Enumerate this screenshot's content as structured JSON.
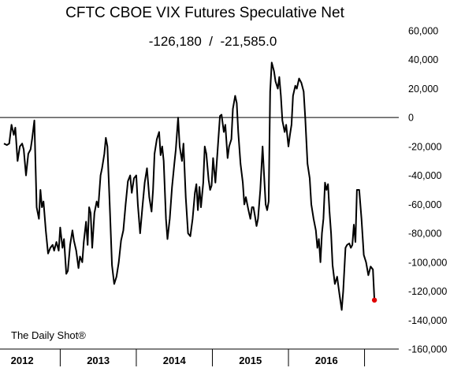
{
  "chart_data": {
    "type": "line",
    "title": "CFTC CBOE VIX Futures Speculative Net",
    "subtitle": "-126,180  /  -21,585.0",
    "source": "The Daily Shot®",
    "xlabel": "",
    "ylabel": "",
    "ylim": [
      -160000,
      60000
    ],
    "yticks": [
      60000,
      40000,
      20000,
      0,
      -20000,
      -40000,
      -60000,
      -80000,
      -100000,
      -120000,
      -140000,
      -160000
    ],
    "ytick_labels": [
      "60,000",
      "40,000",
      "20,000",
      "0",
      "-20,000",
      "-40,000",
      "-60,000",
      "-80,000",
      "-100,000",
      "-120,000",
      "-140,000",
      "-160,000"
    ],
    "xlim": [
      2011.75,
      2016.95
    ],
    "year_labels": [
      "2012",
      "2013",
      "2014",
      "2015",
      "2016"
    ],
    "year_boundaries": [
      2012.5,
      2013.5,
      2014.5,
      2015.5,
      2016.5
    ],
    "zero_line": true,
    "grid": false,
    "last_point_color": "#e00000",
    "line_color": "#000000",
    "series": [
      {
        "values": [
          [
            2011.76,
            -18000
          ],
          [
            2011.8,
            -19000
          ],
          [
            2011.83,
            -18000
          ],
          [
            2011.86,
            -5000
          ],
          [
            2011.89,
            -12000
          ],
          [
            2011.91,
            -7000
          ],
          [
            2011.94,
            -30000
          ],
          [
            2011.97,
            -20000
          ],
          [
            2012.0,
            -18000
          ],
          [
            2012.02,
            -22000
          ],
          [
            2012.05,
            -40000
          ],
          [
            2012.08,
            -25000
          ],
          [
            2012.11,
            -22000
          ],
          [
            2012.13,
            -15000
          ],
          [
            2012.16,
            -2000
          ],
          [
            2012.19,
            -62000
          ],
          [
            2012.22,
            -70000
          ],
          [
            2012.24,
            -50000
          ],
          [
            2012.26,
            -62000
          ],
          [
            2012.28,
            -58000
          ],
          [
            2012.31,
            -78000
          ],
          [
            2012.34,
            -94000
          ],
          [
            2012.37,
            -90000
          ],
          [
            2012.4,
            -88000
          ],
          [
            2012.42,
            -92000
          ],
          [
            2012.45,
            -86000
          ],
          [
            2012.48,
            -92000
          ],
          [
            2012.5,
            -76000
          ],
          [
            2012.53,
            -90000
          ],
          [
            2012.55,
            -84000
          ],
          [
            2012.58,
            -108000
          ],
          [
            2012.6,
            -106000
          ],
          [
            2012.63,
            -88000
          ],
          [
            2012.66,
            -78000
          ],
          [
            2012.68,
            -85000
          ],
          [
            2012.71,
            -92000
          ],
          [
            2012.74,
            -104000
          ],
          [
            2012.76,
            -96000
          ],
          [
            2012.79,
            -100000
          ],
          [
            2012.81,
            -86000
          ],
          [
            2012.84,
            -72000
          ],
          [
            2012.86,
            -88000
          ],
          [
            2012.88,
            -62000
          ],
          [
            2012.9,
            -66000
          ],
          [
            2012.92,
            -90000
          ],
          [
            2012.95,
            -66000
          ],
          [
            2012.98,
            -58000
          ],
          [
            2013.0,
            -62000
          ],
          [
            2013.03,
            -40000
          ],
          [
            2013.05,
            -35000
          ],
          [
            2013.08,
            -25000
          ],
          [
            2013.1,
            -14000
          ],
          [
            2013.12,
            -20000
          ],
          [
            2013.15,
            -60000
          ],
          [
            2013.18,
            -102000
          ],
          [
            2013.21,
            -115000
          ],
          [
            2013.24,
            -110000
          ],
          [
            2013.27,
            -100000
          ],
          [
            2013.3,
            -85000
          ],
          [
            2013.33,
            -78000
          ],
          [
            2013.36,
            -60000
          ],
          [
            2013.39,
            -44000
          ],
          [
            2013.42,
            -40000
          ],
          [
            2013.44,
            -52000
          ],
          [
            2013.47,
            -42000
          ],
          [
            2013.5,
            -40000
          ],
          [
            2013.52,
            -60000
          ],
          [
            2013.55,
            -80000
          ],
          [
            2013.58,
            -62000
          ],
          [
            2013.61,
            -45000
          ],
          [
            2013.64,
            -35000
          ],
          [
            2013.67,
            -55000
          ],
          [
            2013.7,
            -65000
          ],
          [
            2013.72,
            -50000
          ],
          [
            2013.74,
            -25000
          ],
          [
            2013.77,
            -15000
          ],
          [
            2013.8,
            -10000
          ],
          [
            2013.82,
            -26000
          ],
          [
            2013.84,
            -20000
          ],
          [
            2013.86,
            -30000
          ],
          [
            2013.89,
            -70000
          ],
          [
            2013.91,
            -84000
          ],
          [
            2013.94,
            -70000
          ],
          [
            2013.97,
            -48000
          ],
          [
            2014.0,
            -32000
          ],
          [
            2014.02,
            -22000
          ],
          [
            2014.05,
            0
          ],
          [
            2014.07,
            -20000
          ],
          [
            2014.1,
            -30000
          ],
          [
            2014.12,
            -18000
          ],
          [
            2014.15,
            -55000
          ],
          [
            2014.18,
            -80000
          ],
          [
            2014.21,
            -82000
          ],
          [
            2014.24,
            -70000
          ],
          [
            2014.27,
            -52000
          ],
          [
            2014.29,
            -46000
          ],
          [
            2014.31,
            -64000
          ],
          [
            2014.33,
            -48000
          ],
          [
            2014.35,
            -62000
          ],
          [
            2014.38,
            -45000
          ],
          [
            2014.4,
            -20000
          ],
          [
            2014.42,
            -25000
          ],
          [
            2014.45,
            -43000
          ],
          [
            2014.47,
            -50000
          ],
          [
            2014.49,
            -47000
          ],
          [
            2014.51,
            -28000
          ],
          [
            2014.54,
            -45000
          ],
          [
            2014.57,
            -22000
          ],
          [
            2014.6,
            1000
          ],
          [
            2014.62,
            2000
          ],
          [
            2014.65,
            -10000
          ],
          [
            2014.67,
            -5000
          ],
          [
            2014.7,
            -28000
          ],
          [
            2014.72,
            -20000
          ],
          [
            2014.75,
            -15000
          ],
          [
            2014.77,
            6000
          ],
          [
            2014.8,
            15000
          ],
          [
            2014.82,
            10000
          ],
          [
            2014.84,
            -10000
          ],
          [
            2014.87,
            -32000
          ],
          [
            2014.9,
            -45000
          ],
          [
            2014.92,
            -60000
          ],
          [
            2014.94,
            -55000
          ],
          [
            2014.97,
            -63000
          ],
          [
            2015.0,
            -70000
          ],
          [
            2015.02,
            -62000
          ],
          [
            2015.04,
            -62000
          ],
          [
            2015.06,
            -68000
          ],
          [
            2015.08,
            -75000
          ],
          [
            2015.1,
            -70000
          ],
          [
            2015.13,
            -50000
          ],
          [
            2015.16,
            -20000
          ],
          [
            2015.18,
            -40000
          ],
          [
            2015.2,
            -60000
          ],
          [
            2015.22,
            -64000
          ],
          [
            2015.24,
            -58000
          ],
          [
            2015.26,
            18000
          ],
          [
            2015.28,
            38000
          ],
          [
            2015.31,
            32000
          ],
          [
            2015.33,
            25000
          ],
          [
            2015.36,
            20000
          ],
          [
            2015.38,
            28000
          ],
          [
            2015.4,
            15000
          ],
          [
            2015.42,
            -2000
          ],
          [
            2015.45,
            -10000
          ],
          [
            2015.47,
            -5000
          ],
          [
            2015.5,
            -20000
          ],
          [
            2015.52,
            -12000
          ],
          [
            2015.54,
            -5000
          ],
          [
            2015.56,
            15000
          ],
          [
            2015.59,
            22000
          ],
          [
            2015.61,
            20000
          ],
          [
            2015.64,
            27000
          ],
          [
            2015.67,
            24000
          ],
          [
            2015.7,
            18000
          ],
          [
            2015.72,
            0
          ],
          [
            2015.75,
            -32000
          ],
          [
            2015.78,
            -42000
          ],
          [
            2015.8,
            -60000
          ],
          [
            2015.83,
            -70000
          ],
          [
            2015.86,
            -78000
          ],
          [
            2015.88,
            -90000
          ],
          [
            2015.9,
            -84000
          ],
          [
            2015.92,
            -100000
          ],
          [
            2015.94,
            -80000
          ],
          [
            2015.96,
            -70000
          ],
          [
            2015.98,
            -45000
          ],
          [
            2016.0,
            -50000
          ],
          [
            2016.02,
            -46000
          ],
          [
            2016.04,
            -65000
          ],
          [
            2016.06,
            -80000
          ],
          [
            2016.08,
            -102000
          ],
          [
            2016.11,
            -115000
          ],
          [
            2016.14,
            -110000
          ],
          [
            2016.17,
            -122000
          ],
          [
            2016.2,
            -133000
          ],
          [
            2016.22,
            -120000
          ],
          [
            2016.25,
            -90000
          ],
          [
            2016.27,
            -88000
          ],
          [
            2016.3,
            -87000
          ],
          [
            2016.32,
            -90000
          ],
          [
            2016.34,
            -88000
          ],
          [
            2016.36,
            -74000
          ],
          [
            2016.38,
            -86000
          ],
          [
            2016.4,
            -50000
          ],
          [
            2016.43,
            -50000
          ],
          [
            2016.46,
            -70000
          ],
          [
            2016.49,
            -95000
          ],
          [
            2016.52,
            -100000
          ],
          [
            2016.55,
            -109000
          ],
          [
            2016.58,
            -103000
          ],
          [
            2016.61,
            -105000
          ],
          [
            2016.63,
            -126180
          ]
        ]
      }
    ]
  }
}
